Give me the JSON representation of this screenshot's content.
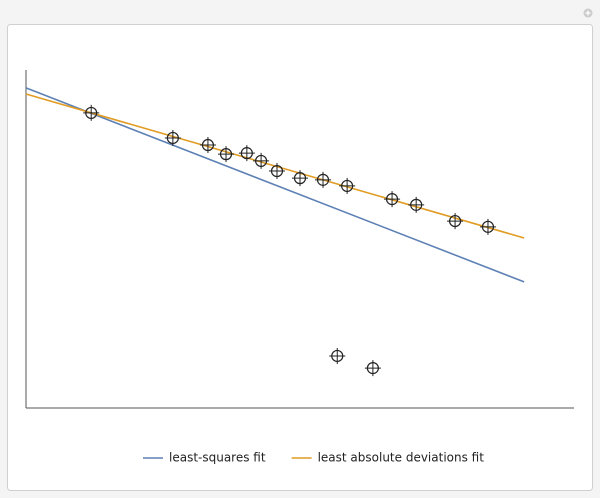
{
  "chart_data": {
    "type": "scatter",
    "x": [
      1.19,
      2.68,
      3.32,
      3.65,
      4.03,
      4.29,
      4.58,
      5.0,
      5.42,
      5.86,
      6.68,
      7.12,
      7.83,
      8.43,
      5.68,
      6.33
    ],
    "values": [
      8.73,
      7.99,
      7.78,
      7.51,
      7.54,
      7.31,
      7.01,
      6.8,
      6.75,
      6.57,
      6.18,
      6.01,
      5.53,
      5.36,
      1.54,
      1.18
    ],
    "series": [
      {
        "name": "least-squares fit",
        "color": "#5e81b5",
        "x": [
          0,
          9.09
        ],
        "values": [
          9.47,
          3.73
        ]
      },
      {
        "name": "least absolute deviations fit",
        "color": "#e19c24",
        "x": [
          0,
          9.09
        ],
        "values": [
          9.29,
          5.03
        ]
      }
    ],
    "xlim": [
      0,
      10
    ],
    "ylim": [
      0,
      10
    ],
    "legend": "bottom"
  }
}
